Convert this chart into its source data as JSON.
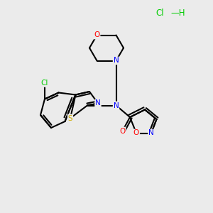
{
  "background_color": "#ebebeb",
  "atom_colors": {
    "C": "#000000",
    "N": "#0000ff",
    "O": "#ff0000",
    "S": "#ccaa00",
    "Cl": "#00cc00",
    "H": "#000000"
  },
  "hcl_color": "#00cc00",
  "bond_lw": 1.5,
  "font_size": 7.5
}
